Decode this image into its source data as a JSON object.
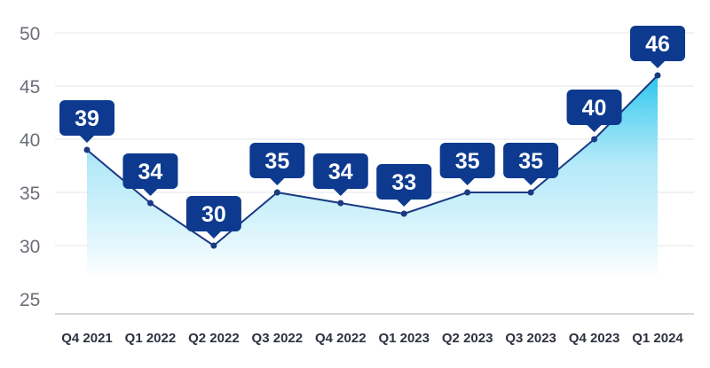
{
  "chart_data": {
    "type": "area",
    "title": "",
    "xlabel": "",
    "ylabel": "",
    "categories": [
      "Q4 2021",
      "Q1 2022",
      "Q2 2022",
      "Q3 2022",
      "Q4 2022",
      "Q1 2023",
      "Q2 2023",
      "Q3 2023",
      "Q4 2023",
      "Q1 2024"
    ],
    "series": [
      {
        "values": [
          39,
          34,
          30,
          35,
          34,
          33,
          35,
          35,
          40,
          46
        ]
      }
    ],
    "yticks": [
      25,
      30,
      35,
      40,
      45,
      50
    ],
    "ylim": [
      25,
      50
    ],
    "grid": true,
    "data_labels": true,
    "colors": {
      "line": "#1a3a82",
      "callout": "#0d3a8e",
      "area_top": "#1ec3ec",
      "area_bottom": "#ffffff",
      "grid": "#e6e6ea",
      "axis": "#c9cbd2"
    }
  }
}
